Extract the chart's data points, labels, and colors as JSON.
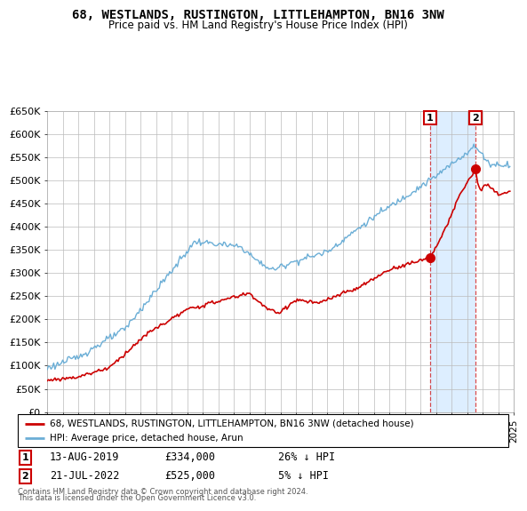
{
  "title": "68, WESTLANDS, RUSTINGTON, LITTLEHAMPTON, BN16 3NW",
  "subtitle": "Price paid vs. HM Land Registry's House Price Index (HPI)",
  "ylabel_ticks": [
    "£0",
    "£50K",
    "£100K",
    "£150K",
    "£200K",
    "£250K",
    "£300K",
    "£350K",
    "£400K",
    "£450K",
    "£500K",
    "£550K",
    "£600K",
    "£650K"
  ],
  "ytick_values": [
    0,
    50000,
    100000,
    150000,
    200000,
    250000,
    300000,
    350000,
    400000,
    450000,
    500000,
    550000,
    600000,
    650000
  ],
  "hpi_color": "#6baed6",
  "price_color": "#cc0000",
  "shade_color": "#ddeeff",
  "annotation1": {
    "label": "1",
    "date": "13-AUG-2019",
    "price": "£334,000",
    "hpi_diff": "26% ↓ HPI",
    "x_year": 2019.62
  },
  "annotation2": {
    "label": "2",
    "date": "21-JUL-2022",
    "price": "£525,000",
    "hpi_diff": "5% ↓ HPI",
    "x_year": 2022.54
  },
  "legend_line1": "68, WESTLANDS, RUSTINGTON, LITTLEHAMPTON, BN16 3NW (detached house)",
  "legend_line2": "HPI: Average price, detached house, Arun",
  "footer1": "Contains HM Land Registry data © Crown copyright and database right 2024.",
  "footer2": "This data is licensed under the Open Government Licence v3.0.",
  "xmin": 1995,
  "xmax": 2025,
  "ymin": 0,
  "ymax": 650000
}
